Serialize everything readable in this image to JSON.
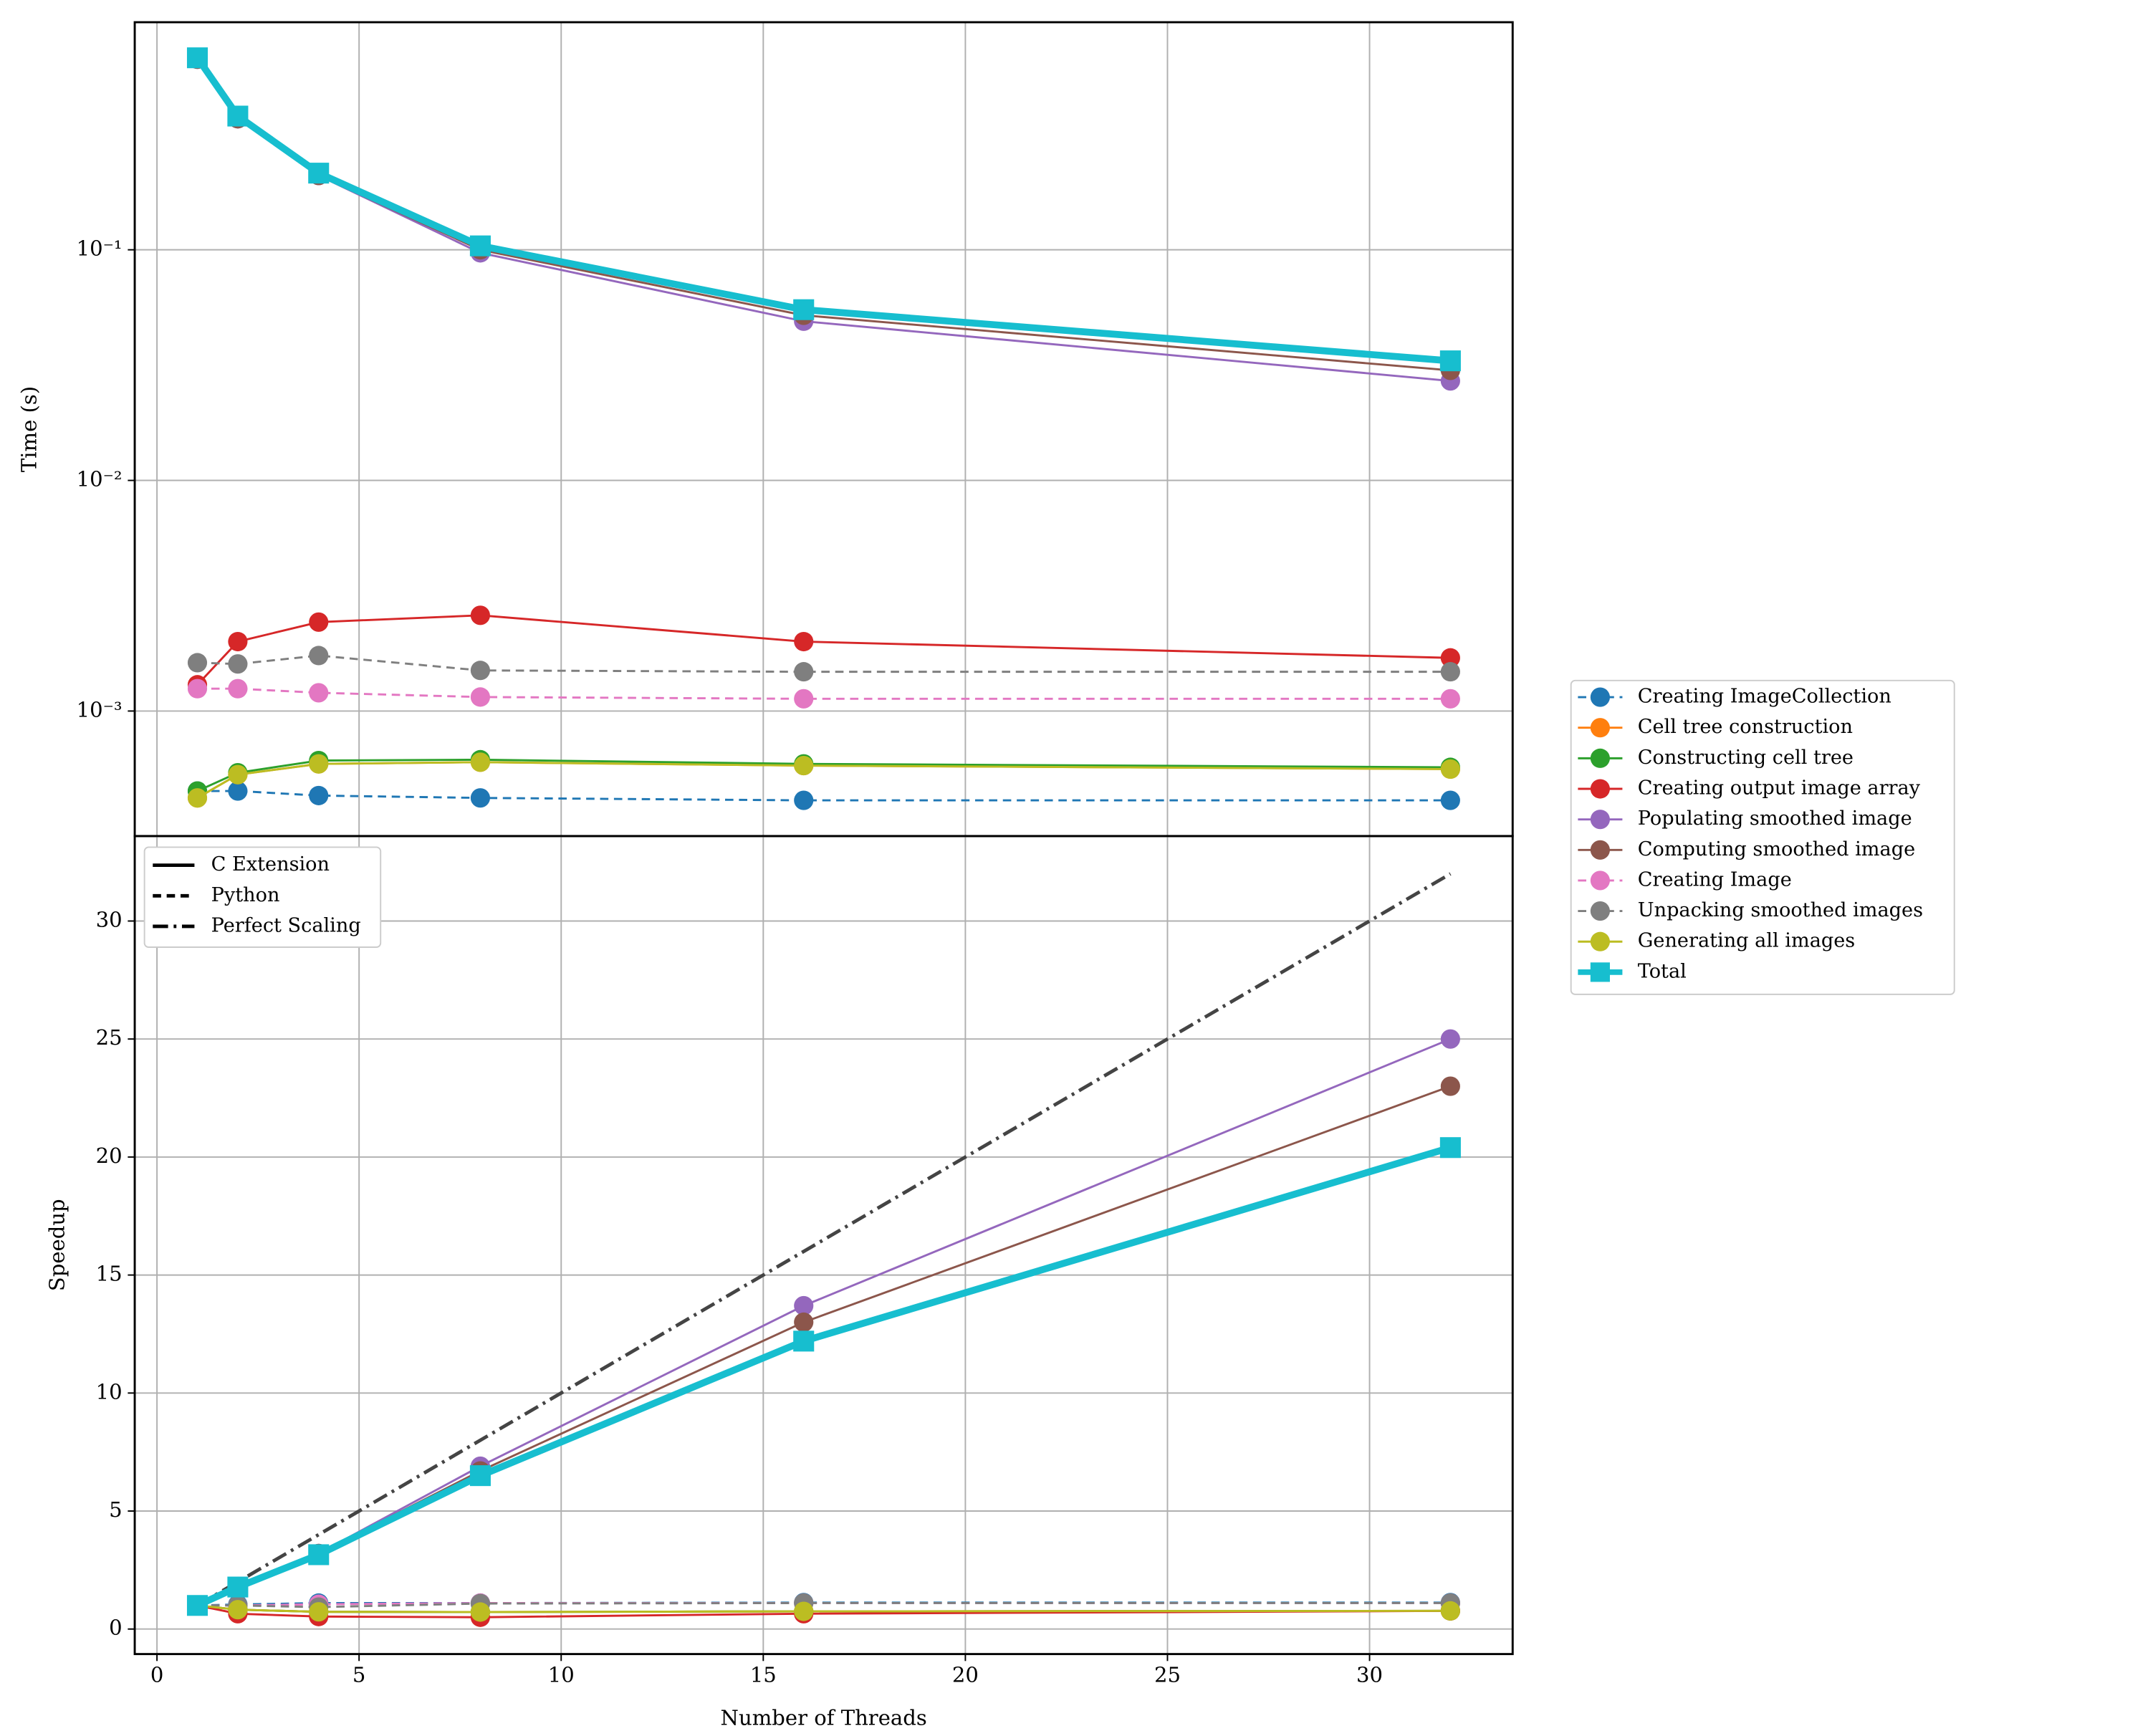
{
  "chart_data": [
    {
      "type": "line",
      "ylabel": "Time (s)",
      "log_y": true,
      "grid": true,
      "legend": "right",
      "x": [
        1,
        2,
        4,
        8,
        16,
        32
      ],
      "xlim": [
        -0.55,
        33.54
      ],
      "xticks": [
        0,
        5,
        10,
        15,
        20,
        25,
        30
      ],
      "ylim": [
        0.000287,
        0.97
      ],
      "yticks": [
        {
          "value": 0.001,
          "label": "10⁻³"
        },
        {
          "value": 0.01,
          "label": "10⁻²"
        },
        {
          "value": 0.1,
          "label": "10⁻¹"
        }
      ],
      "series": [
        {
          "name": "Creating ImageCollection",
          "color": "#1f77b4",
          "linestyle": "dashed",
          "marker": "circle",
          "linewidth": 1.5,
          "values": [
            0.00045,
            0.00045,
            0.00043,
            0.00042,
            0.00041,
            0.00041
          ]
        },
        {
          "name": "Cell tree construction",
          "color": "#ff7f0e",
          "linestyle": "solid",
          "marker": "circle",
          "linewidth": 1.5,
          "values": [
            0.00042,
            0.00053,
            0.00059,
            0.0006,
            0.00058,
            0.00056
          ]
        },
        {
          "name": "Constructing cell tree",
          "color": "#2ca02c",
          "linestyle": "solid",
          "marker": "circle",
          "linewidth": 1.5,
          "values": [
            0.00045,
            0.00054,
            0.00061,
            0.000615,
            0.00059,
            0.00057
          ]
        },
        {
          "name": "Creating output image array",
          "color": "#d62728",
          "linestyle": "solid",
          "marker": "circle",
          "linewidth": 1.5,
          "values": [
            0.0013,
            0.002,
            0.00243,
            0.0026,
            0.002,
            0.0017
          ]
        },
        {
          "name": "Populating smoothed image",
          "color": "#9467bd",
          "linestyle": "solid",
          "marker": "circle",
          "linewidth": 1.5,
          "values": [
            0.67,
            0.37,
            0.21,
            0.097,
            0.049,
            0.027
          ]
        },
        {
          "name": "Computing smoothed image",
          "color": "#8c564b",
          "linestyle": "solid",
          "marker": "circle",
          "linewidth": 1.5,
          "values": [
            0.67,
            0.37,
            0.21,
            0.1,
            0.052,
            0.03
          ]
        },
        {
          "name": "Creating Image",
          "color": "#e377c2",
          "linestyle": "dashed",
          "marker": "circle",
          "linewidth": 1.5,
          "values": [
            0.00125,
            0.00125,
            0.0012,
            0.00115,
            0.00113,
            0.00113
          ]
        },
        {
          "name": "Unpacking smoothed images",
          "color": "#7f7f7f",
          "linestyle": "dashed",
          "marker": "circle",
          "linewidth": 1.5,
          "values": [
            0.00162,
            0.0016,
            0.00174,
            0.0015,
            0.00148,
            0.00148
          ]
        },
        {
          "name": "Generating all images",
          "color": "#bcbd22",
          "linestyle": "solid",
          "marker": "circle",
          "linewidth": 1.5,
          "values": [
            0.00042,
            0.00053,
            0.00059,
            0.0006,
            0.00058,
            0.00056
          ]
        },
        {
          "name": "Total",
          "color": "#17becf",
          "linestyle": "solid",
          "marker": "square",
          "linewidth": 5,
          "values": [
            0.68,
            0.38,
            0.215,
            0.104,
            0.055,
            0.033
          ]
        }
      ]
    },
    {
      "type": "line",
      "ylabel": "Speedup",
      "xlabel": "Number of Threads",
      "grid": true,
      "style_legend_loc": "upper left",
      "x": [
        1,
        2,
        4,
        8,
        16,
        32
      ],
      "xlim": [
        -0.55,
        33.54
      ],
      "xticks": [
        0,
        5,
        10,
        15,
        20,
        25,
        30
      ],
      "ylim": [
        -1.06,
        33.6
      ],
      "yticks": [
        0,
        5,
        10,
        15,
        20,
        25,
        30
      ],
      "style_legend": [
        {
          "label": "C Extension",
          "linestyle": "solid"
        },
        {
          "label": "Python",
          "linestyle": "dashed"
        },
        {
          "label": "Perfect Scaling",
          "linestyle": "dashdot"
        }
      ],
      "series": [
        {
          "color": "#444444",
          "linestyle": "dashdot",
          "marker": "none",
          "linewidth": 2.5,
          "x": [
            1,
            32
          ],
          "values": [
            1,
            32
          ]
        },
        {
          "color": "#1f77b4",
          "linestyle": "dashed",
          "marker": "circle",
          "linewidth": 1.5,
          "values": [
            1,
            1.04,
            1.1,
            1.1,
            1.12,
            1.12
          ]
        },
        {
          "color": "#ff7f0e",
          "linestyle": "solid",
          "marker": "circle",
          "linewidth": 1.5,
          "values": [
            1,
            0.82,
            0.73,
            0.72,
            0.75,
            0.77
          ]
        },
        {
          "color": "#2ca02c",
          "linestyle": "solid",
          "marker": "circle",
          "linewidth": 1.5,
          "values": [
            1,
            0.82,
            0.73,
            0.72,
            0.75,
            0.77
          ]
        },
        {
          "color": "#d62728",
          "linestyle": "solid",
          "marker": "circle",
          "linewidth": 1.5,
          "values": [
            1,
            0.65,
            0.53,
            0.5,
            0.65,
            0.77
          ]
        },
        {
          "color": "#9467bd",
          "linestyle": "solid",
          "marker": "circle",
          "linewidth": 1.5,
          "values": [
            1,
            1.8,
            3.2,
            6.9,
            13.7,
            25
          ]
        },
        {
          "color": "#8c564b",
          "linestyle": "solid",
          "marker": "circle",
          "linewidth": 1.5,
          "values": [
            1,
            1.8,
            3.2,
            6.7,
            13.0,
            23.0
          ]
        },
        {
          "color": "#e377c2",
          "linestyle": "dashed",
          "marker": "circle",
          "linewidth": 1.5,
          "values": [
            1,
            1.0,
            1.05,
            1.1,
            1.1,
            1.1
          ]
        },
        {
          "color": "#7f7f7f",
          "linestyle": "dashed",
          "marker": "circle",
          "linewidth": 1.5,
          "values": [
            1,
            1.0,
            0.93,
            1.08,
            1.1,
            1.1
          ]
        },
        {
          "color": "#bcbd22",
          "linestyle": "solid",
          "marker": "circle",
          "linewidth": 1.5,
          "values": [
            1,
            0.82,
            0.73,
            0.72,
            0.75,
            0.77
          ]
        },
        {
          "color": "#17becf",
          "linestyle": "solid",
          "marker": "square",
          "linewidth": 5,
          "values": [
            1,
            1.78,
            3.15,
            6.5,
            12.2,
            20.4
          ]
        }
      ]
    }
  ]
}
